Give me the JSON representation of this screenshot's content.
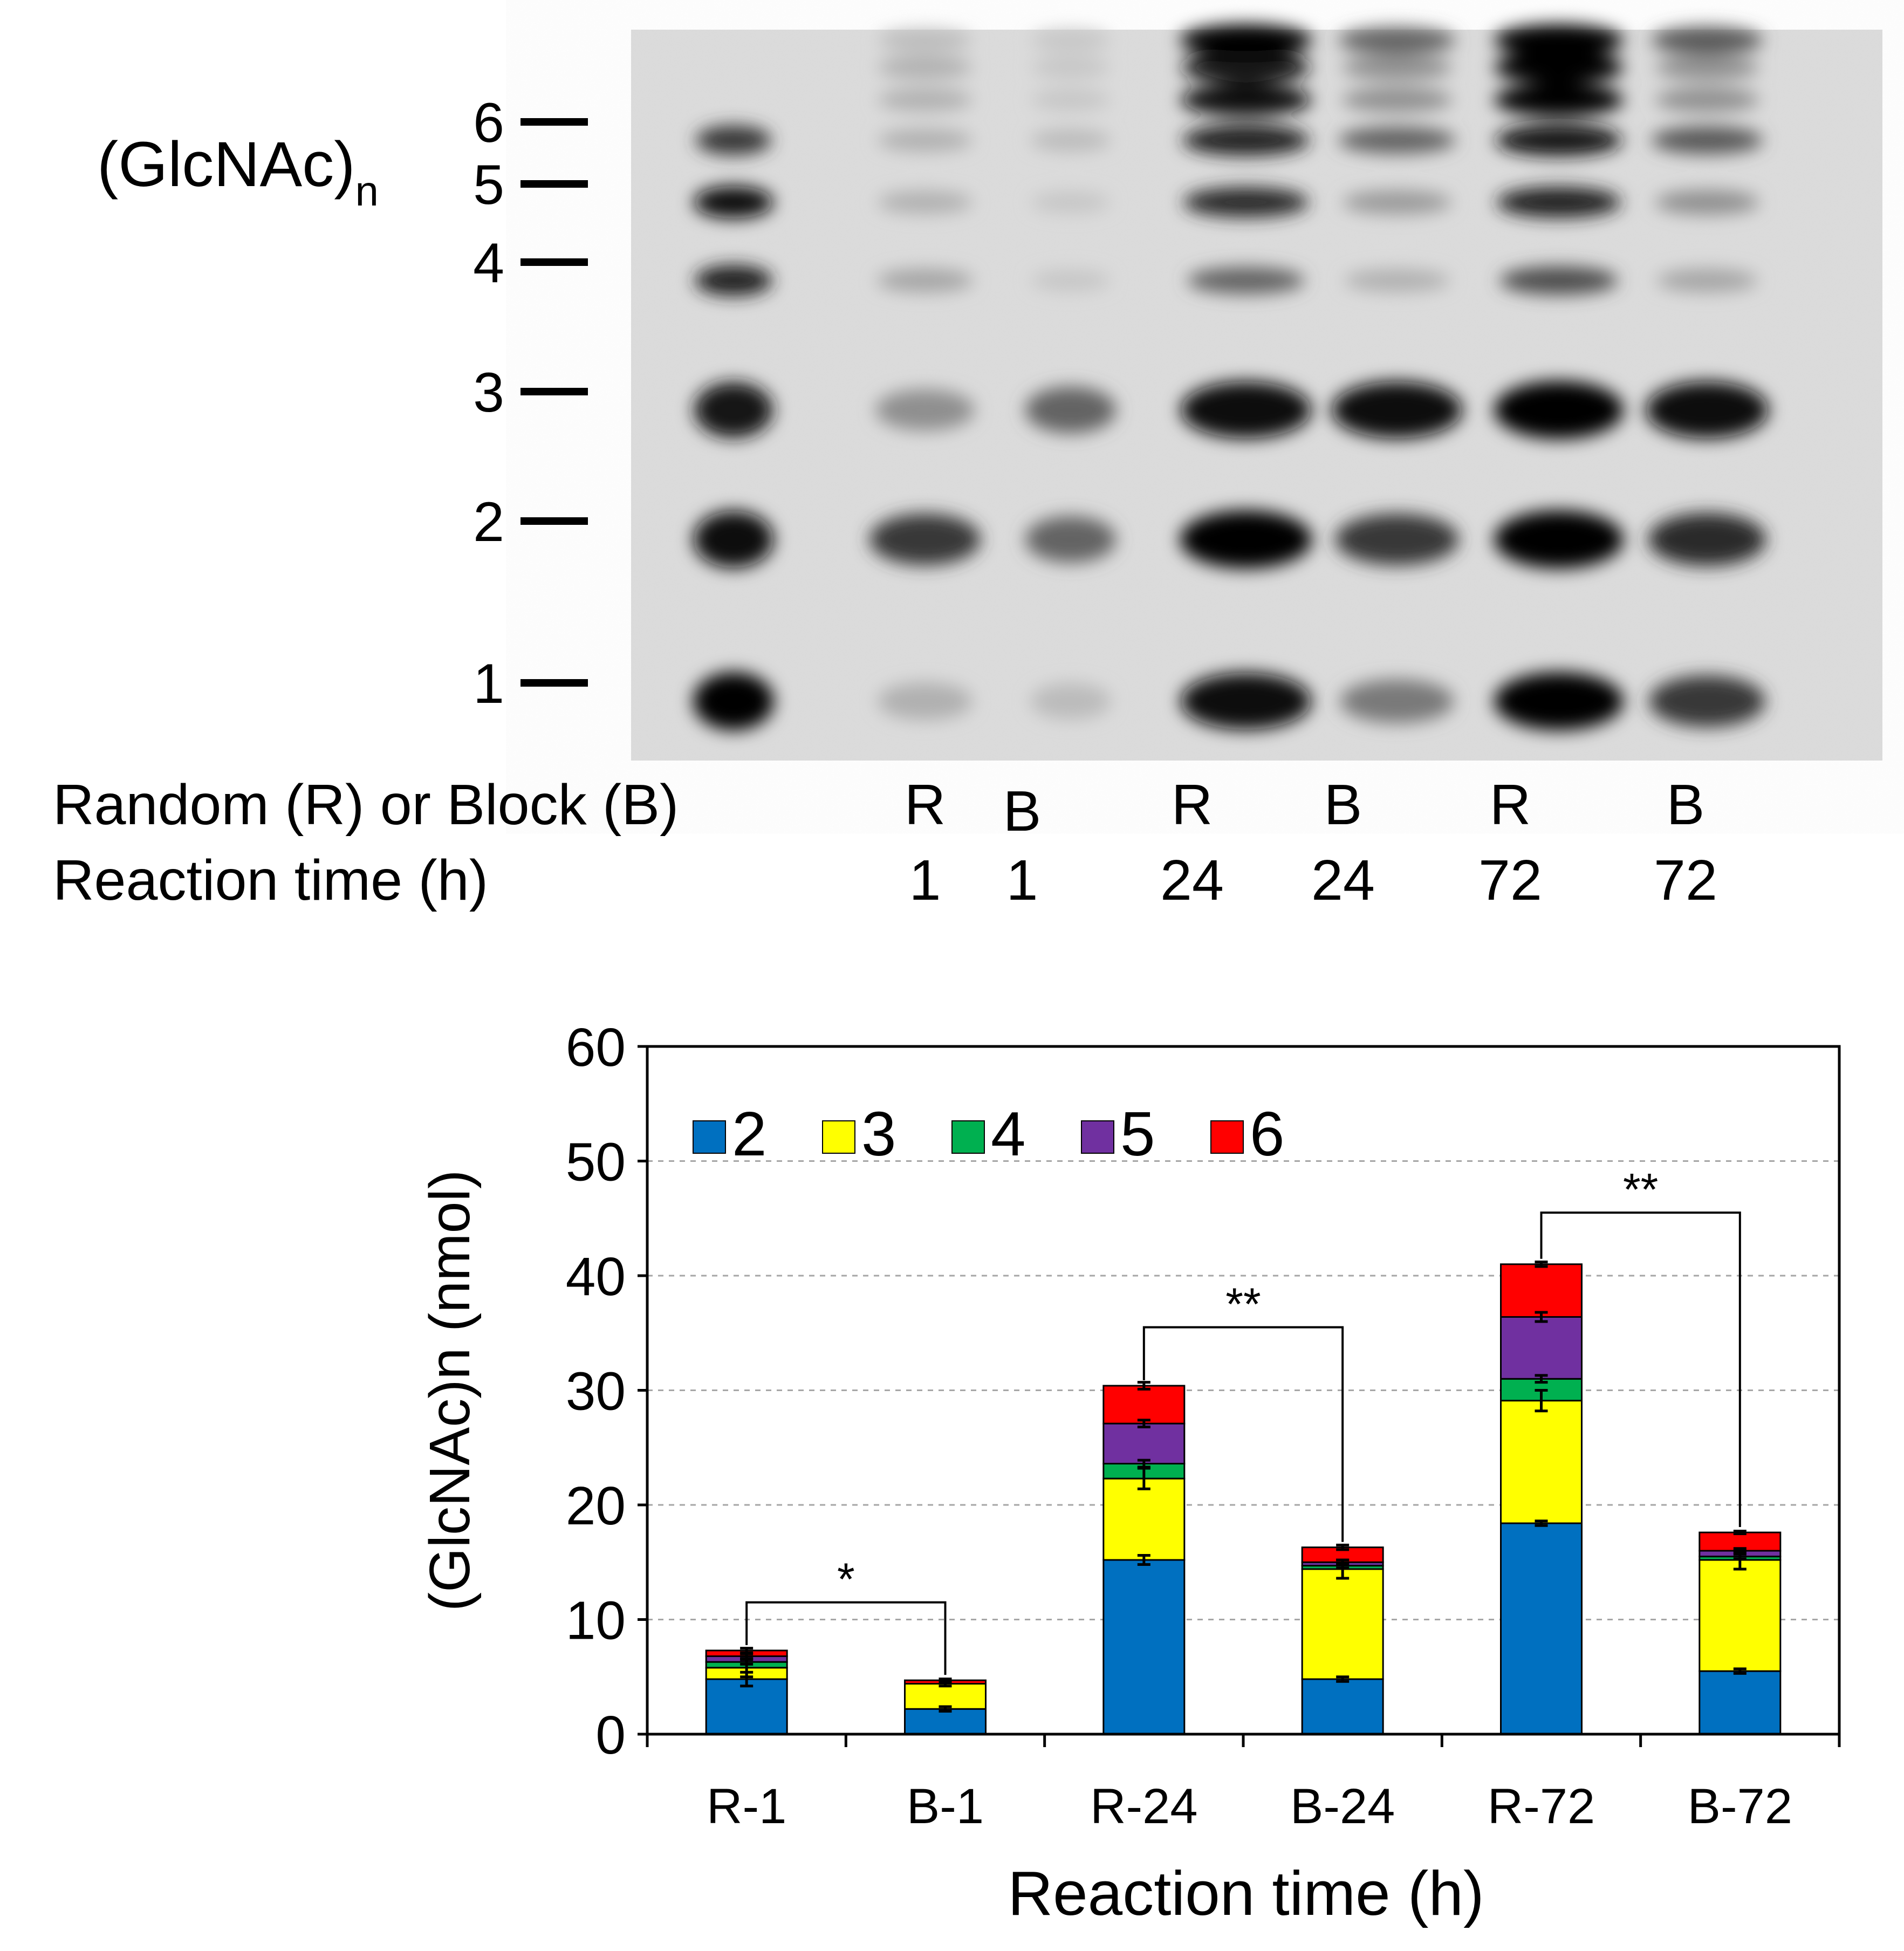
{
  "gel": {
    "species_label": {
      "main": "(GlcNAc)",
      "sub": "n"
    },
    "markers": [
      {
        "label": "6",
        "dp": 6
      },
      {
        "label": "5",
        "dp": 5
      },
      {
        "label": "4",
        "dp": 4
      },
      {
        "label": "3",
        "dp": 3
      },
      {
        "label": "2",
        "dp": 2
      },
      {
        "label": "1",
        "dp": 1
      }
    ],
    "row_labels": {
      "type": "Random (R) or Block (B)",
      "time": "Reaction time (h)"
    },
    "lanes": [
      {
        "type": "",
        "time": "",
        "bands": {
          "1": 1.0,
          "2": 0.95,
          "3": 0.9,
          "4": 0.85,
          "5": 0.95,
          "6": 0.75
        }
      },
      {
        "type": "R",
        "time": "1",
        "bands": {
          "1": 0.2,
          "2": 0.75,
          "3": 0.35,
          "4": 0.25,
          "5": 0.2,
          "6": 0.2,
          "7": 0.2,
          "8": 0.2,
          "9": 0.15
        }
      },
      {
        "type": "B",
        "time": "1",
        "bands": {
          "1": 0.15,
          "2": 0.55,
          "3": 0.55,
          "4": 0.1,
          "5": 0.1,
          "6": 0.15,
          "7": 0.1,
          "8": 0.1,
          "9": 0.1
        }
      },
      {
        "type": "R",
        "time": "24",
        "bands": {
          "1": 0.95,
          "2": 1.0,
          "3": 0.95,
          "4": 0.55,
          "5": 0.8,
          "6": 0.85,
          "7": 0.95,
          "8": 0.9,
          "9": 1.0
        }
      },
      {
        "type": "B",
        "time": "24",
        "bands": {
          "1": 0.45,
          "2": 0.75,
          "3": 0.95,
          "4": 0.2,
          "5": 0.3,
          "6": 0.55,
          "7": 0.35,
          "8": 0.35,
          "9": 0.55
        }
      },
      {
        "type": "R",
        "time": "72",
        "bands": {
          "1": 1.0,
          "2": 1.0,
          "3": 1.0,
          "4": 0.65,
          "5": 0.85,
          "6": 0.9,
          "7": 1.0,
          "8": 1.0,
          "9": 1.0
        }
      },
      {
        "type": "B",
        "time": "72",
        "bands": {
          "1": 0.75,
          "2": 0.8,
          "3": 0.95,
          "4": 0.25,
          "5": 0.35,
          "6": 0.6,
          "7": 0.35,
          "8": 0.35,
          "9": 0.6
        }
      }
    ]
  },
  "chart_data": {
    "type": "bar",
    "stacked": true,
    "title": "",
    "xlabel": "Reaction time (h)",
    "ylabel": "(GlcNAc)n (nmol)",
    "ylim": [
      0,
      60
    ],
    "yticks": [
      0,
      10,
      20,
      30,
      40,
      50,
      60
    ],
    "grid": "horizontal dashed",
    "legend": "top-left",
    "categories": [
      "R-1",
      "B-1",
      "R-24",
      "B-24",
      "R-72",
      "B-72"
    ],
    "series": [
      {
        "name": "2",
        "color": "#0070c0",
        "values": [
          4.8,
          2.2,
          15.2,
          4.8,
          18.4,
          5.5
        ],
        "errors": [
          0.6,
          0.2,
          0.4,
          0.2,
          0.2,
          0.2
        ]
      },
      {
        "name": "3",
        "color": "#ffff00",
        "values": [
          1.0,
          2.2,
          7.1,
          9.6,
          10.7,
          9.7
        ],
        "errors": [
          0.8,
          0.2,
          0.9,
          0.8,
          0.9,
          0.8
        ]
      },
      {
        "name": "4",
        "color": "#00b050",
        "values": [
          0.5,
          0.0,
          1.3,
          0.3,
          1.9,
          0.3
        ],
        "errors": [
          0.2,
          0.0,
          0.3,
          0.2,
          0.3,
          0.2
        ]
      },
      {
        "name": "5",
        "color": "#7030a0",
        "values": [
          0.5,
          0.0,
          3.5,
          0.3,
          5.4,
          0.5
        ],
        "errors": [
          0.2,
          0.0,
          0.3,
          0.2,
          0.4,
          0.2
        ]
      },
      {
        "name": "6",
        "color": "#ff0000",
        "values": [
          0.5,
          0.3,
          3.3,
          1.3,
          4.6,
          1.6
        ],
        "errors": [
          0.2,
          0.1,
          0.3,
          0.2,
          0.2,
          0.1
        ]
      }
    ],
    "annotations": [
      {
        "from": "R-1",
        "to": "B-1",
        "label": "*",
        "level": 11.5
      },
      {
        "from": "R-24",
        "to": "B-24",
        "label": "**",
        "level": 35.5
      },
      {
        "from": "R-72",
        "to": "B-72",
        "label": "**",
        "level": 45.5
      }
    ]
  }
}
